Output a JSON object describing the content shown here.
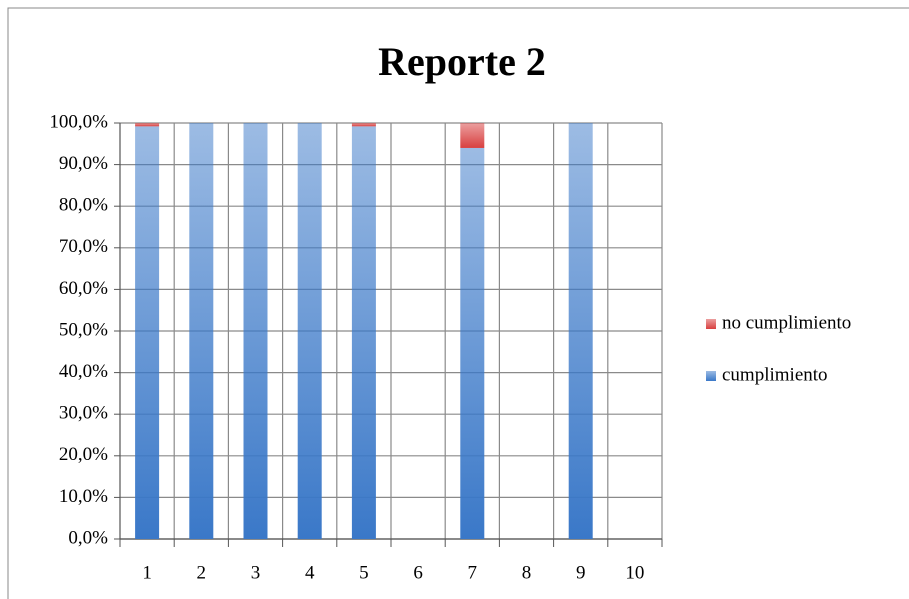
{
  "chart_data": {
    "type": "stacked_bar",
    "title": "Reporte 2",
    "categories": [
      "1",
      "2",
      "3",
      "4",
      "5",
      "6",
      "7",
      "8",
      "9",
      "10"
    ],
    "series": [
      {
        "name": "cumplimiento",
        "color": "#3a78c8",
        "values": [
          99.2,
          100,
          100,
          100,
          99.2,
          null,
          94,
          null,
          100,
          null
        ]
      },
      {
        "name": "no cumplimiento",
        "color": "#d84040",
        "values": [
          0.8,
          0,
          0,
          0,
          0.8,
          null,
          6,
          null,
          0,
          null
        ]
      }
    ],
    "ylim": [
      0,
      100
    ],
    "yticks": [
      {
        "value": 0,
        "label": "0,0%"
      },
      {
        "value": 10,
        "label": "10,0%"
      },
      {
        "value": 20,
        "label": "20,0%"
      },
      {
        "value": 30,
        "label": "30,0%"
      },
      {
        "value": 40,
        "label": "40,0%"
      },
      {
        "value": 50,
        "label": "50,0%"
      },
      {
        "value": 60,
        "label": "60,0%"
      },
      {
        "value": 70,
        "label": "70,0%"
      },
      {
        "value": 80,
        "label": "80,0%"
      },
      {
        "value": 90,
        "label": "90,0%"
      },
      {
        "value": 100,
        "label": "100,0%"
      }
    ],
    "grid": true,
    "legend": "right"
  }
}
